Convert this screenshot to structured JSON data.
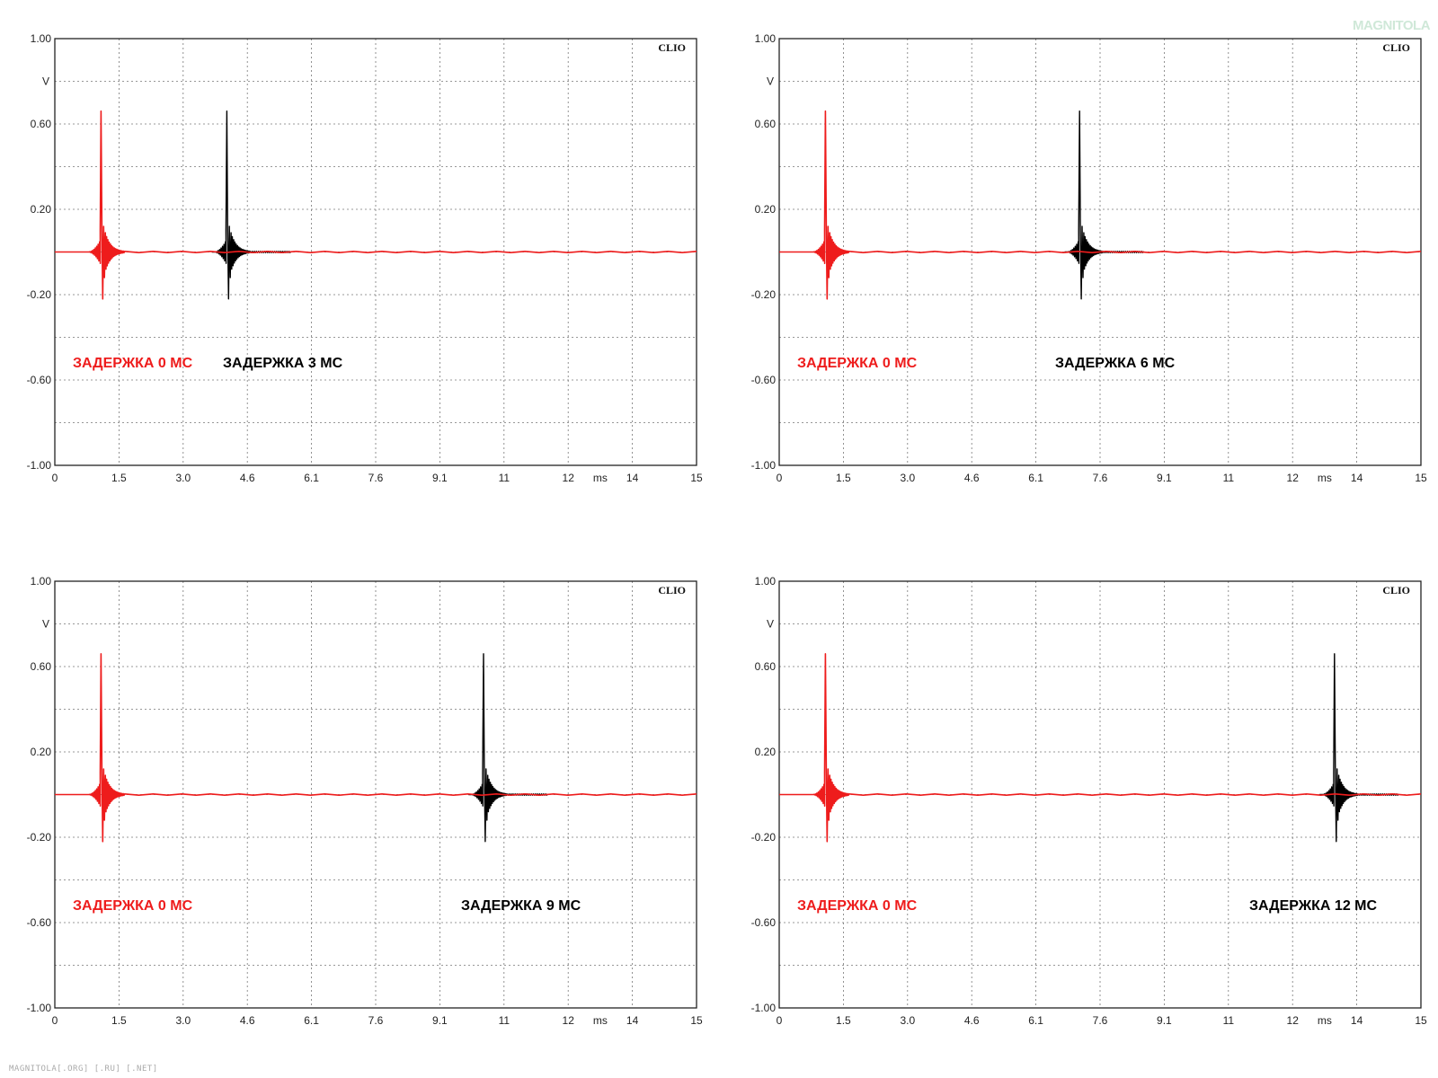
{
  "footer": "MAGNITOLA[.ORG] [.RU] [.NET]",
  "logo": "MAGNITOLA",
  "colors": {
    "ref": "#ee1c1c",
    "delayed": "#000000",
    "grid": "#777777"
  },
  "chart_data": [
    {
      "type": "line",
      "brand": "CLIO",
      "ylabel": "V",
      "xunit": "ms",
      "xlim": [
        0,
        15
      ],
      "ylim": [
        -1,
        1
      ],
      "yticks": [
        "1.00",
        "0.60",
        "0.20",
        "-0.20",
        "-0.60",
        "-1.00"
      ],
      "xticks": [
        "0",
        "1.5",
        "3.0",
        "4.6",
        "6.1",
        "7.6",
        "9.1",
        "11",
        "12",
        "14",
        "15"
      ],
      "grid": true,
      "series": [
        {
          "label": "ЗАДЕРЖКА 0 МС",
          "peak_time_ms": 1.08,
          "peak_v": 0.66,
          "min_v": -0.22,
          "color": "#ee1c1c"
        },
        {
          "label": "ЗАДЕРЖКА 3 МС",
          "peak_time_ms": 4.02,
          "peak_v": 0.66,
          "min_v": -0.22,
          "color": "#000000"
        }
      ]
    },
    {
      "type": "line",
      "brand": "CLIO",
      "ylabel": "V",
      "xunit": "ms",
      "xlim": [
        0,
        15
      ],
      "ylim": [
        -1,
        1
      ],
      "yticks": [
        "1.00",
        "0.60",
        "0.20",
        "-0.20",
        "-0.60",
        "-1.00"
      ],
      "xticks": [
        "0",
        "1.5",
        "3.0",
        "4.6",
        "6.1",
        "7.6",
        "9.1",
        "11",
        "12",
        "14",
        "15"
      ],
      "grid": true,
      "series": [
        {
          "label": "ЗАДЕРЖКА 0 МС",
          "peak_time_ms": 1.08,
          "peak_v": 0.66,
          "min_v": -0.22,
          "color": "#ee1c1c"
        },
        {
          "label": "ЗАДЕРЖКА 6 МС",
          "peak_time_ms": 7.02,
          "peak_v": 0.66,
          "min_v": -0.22,
          "color": "#000000"
        }
      ]
    },
    {
      "type": "line",
      "brand": "CLIO",
      "ylabel": "V",
      "xunit": "ms",
      "xlim": [
        0,
        15
      ],
      "ylim": [
        -1,
        1
      ],
      "yticks": [
        "1.00",
        "0.60",
        "0.20",
        "-0.20",
        "-0.60",
        "-1.00"
      ],
      "xticks": [
        "0",
        "1.5",
        "3.0",
        "4.6",
        "6.1",
        "7.6",
        "9.1",
        "11",
        "12",
        "14",
        "15"
      ],
      "grid": true,
      "series": [
        {
          "label": "ЗАДЕРЖКА 0 МС",
          "peak_time_ms": 1.08,
          "peak_v": 0.66,
          "min_v": -0.22,
          "color": "#ee1c1c"
        },
        {
          "label": "ЗАДЕРЖКА 9 МС",
          "peak_time_ms": 10.02,
          "peak_v": 0.66,
          "min_v": -0.22,
          "color": "#000000"
        }
      ]
    },
    {
      "type": "line",
      "brand": "CLIO",
      "ylabel": "V",
      "xunit": "ms",
      "xlim": [
        0,
        15
      ],
      "ylim": [
        -1,
        1
      ],
      "yticks": [
        "1.00",
        "0.60",
        "0.20",
        "-0.20",
        "-0.60",
        "-1.00"
      ],
      "xticks": [
        "0",
        "1.5",
        "3.0",
        "4.6",
        "6.1",
        "7.6",
        "9.1",
        "11",
        "12",
        "14",
        "15"
      ],
      "grid": true,
      "series": [
        {
          "label": "ЗАДЕРЖКА 0 МС",
          "peak_time_ms": 1.08,
          "peak_v": 0.66,
          "min_v": -0.22,
          "color": "#ee1c1c"
        },
        {
          "label": "ЗАДЕРЖКА 12 МС",
          "peak_time_ms": 12.98,
          "peak_v": 0.66,
          "min_v": -0.22,
          "color": "#000000"
        }
      ]
    }
  ]
}
